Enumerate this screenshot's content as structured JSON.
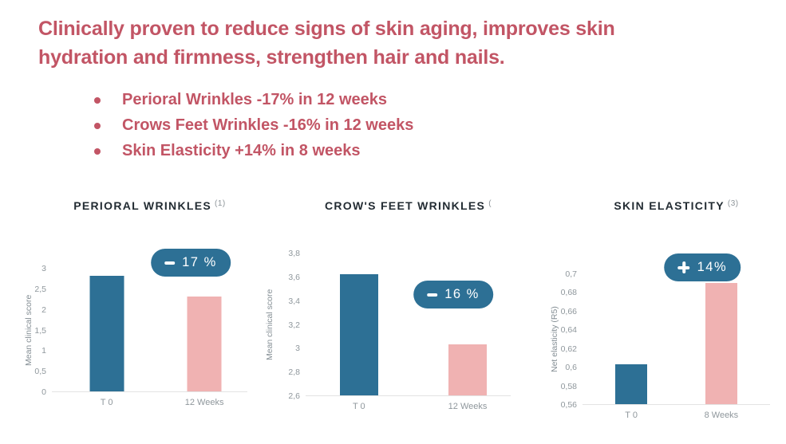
{
  "headline": "Clinically proven to reduce signs of skin aging, improves skin hydration and firmness, strengthen hair and nails.",
  "bullets": [
    "Perioral Wrinkles -17% in 12 weeks",
    "Crows Feet Wrinkles -16% in 12 weeks",
    "Skin Elasticity +14% in 8 weeks"
  ],
  "colors": {
    "headline_red": "#c25565",
    "bar_blue": "#2d7095",
    "bar_pink": "#f0b2b2",
    "badge_blue": "#2d7095",
    "chart_title_dark": "#232c33",
    "axis_gray": "#8f979c"
  },
  "chart_data": [
    {
      "type": "bar",
      "title": "PERIORAL WRINKLES",
      "superscript": "(1)",
      "ylabel": "Mean clinical score",
      "ylim": [
        0,
        3
      ],
      "yticks": [
        "3",
        "2,5",
        "2",
        "1,5",
        "1",
        "0,5",
        "0"
      ],
      "categories": [
        "T 0",
        "12 Weeks"
      ],
      "values": [
        2.8,
        2.3
      ],
      "badge": {
        "sign": "minus",
        "label": "17 %"
      }
    },
    {
      "type": "bar",
      "title": "CROW'S FEET WRINKLES",
      "superscript": "(",
      "ylabel": "Mean clinical score",
      "ylim": [
        2.6,
        3.8
      ],
      "yticks": [
        "3,8",
        "3,6",
        "3,4",
        "3,2",
        "3",
        "2,8",
        "2,6"
      ],
      "categories": [
        "T 0",
        "12 Weeks"
      ],
      "values": [
        3.62,
        3.03
      ],
      "badge": {
        "sign": "minus",
        "label": "16 %"
      }
    },
    {
      "type": "bar",
      "title": "SKIN ELASTICITY",
      "superscript": "(3)",
      "ylabel": "Net elasticity (R5)",
      "ylim": [
        0.56,
        0.7
      ],
      "yticks": [
        "0,7",
        "0,68",
        "0,66",
        "0,64",
        "0,62",
        "0,6",
        "0,58",
        "0,56"
      ],
      "categories": [
        "T 0",
        "8 Weeks"
      ],
      "values": [
        0.603,
        0.69
      ],
      "badge": {
        "sign": "plus",
        "label": "14%"
      }
    }
  ]
}
